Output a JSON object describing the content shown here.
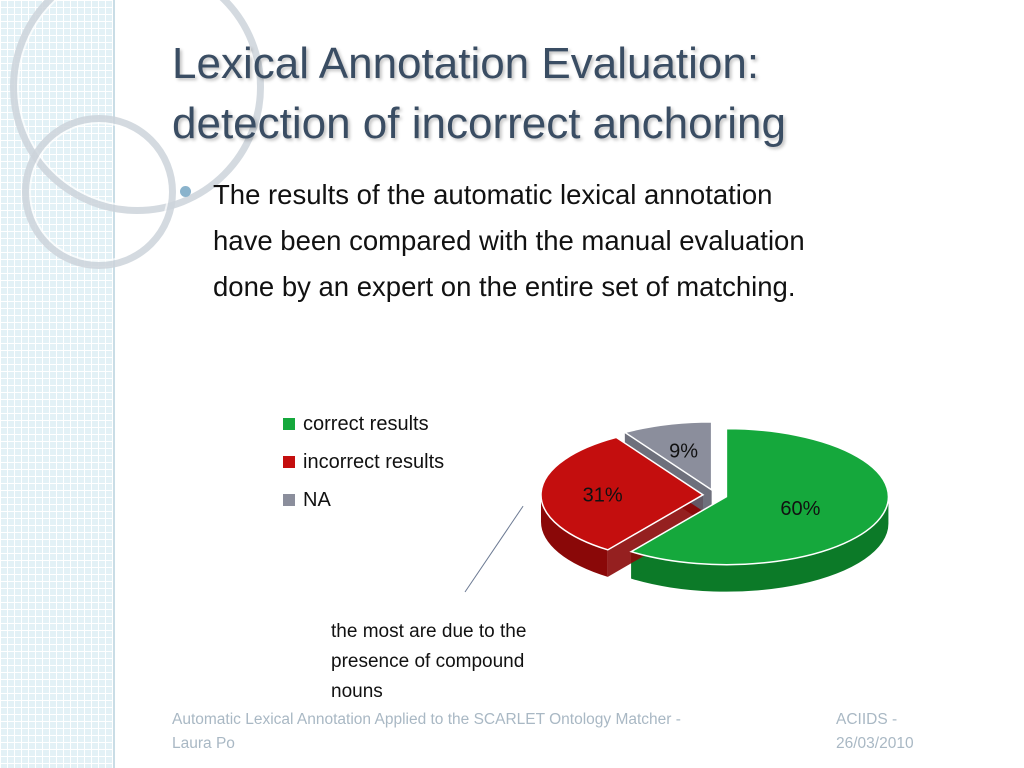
{
  "slide": {
    "title_line1": "Lexical Annotation Evaluation:",
    "title_line2": "detection of incorrect anchoring",
    "bullet_line1": "The results of the automatic lexical annotation",
    "bullet_line2": "have been compared with the manual evaluation",
    "bullet_line3": "done by an expert on the entire set of matching.",
    "note_line1": "the most are due to the",
    "note_line2": "presence of compound",
    "note_line3": "nouns",
    "footer_left_line1": "Automatic Lexical Annotation Applied to the SCARLET Ontology Matcher -",
    "footer_left_line2": "Laura Po",
    "footer_right_line1": "ACIIDS -",
    "footer_right_line2": "26/03/2010"
  },
  "chart_data": {
    "type": "pie",
    "categories": [
      "correct results",
      "incorrect results",
      "NA"
    ],
    "values": [
      60,
      31,
      9
    ],
    "data_labels": [
      "60%",
      "31%",
      "9%"
    ],
    "colors": [
      "#15a83c",
      "#c40e0e",
      "#8b8e9c"
    ],
    "side_colors": [
      "#0c7a28",
      "#8a0808",
      "#5e616e"
    ],
    "legend_position": "top-left",
    "exploded": true,
    "three_d": true
  }
}
